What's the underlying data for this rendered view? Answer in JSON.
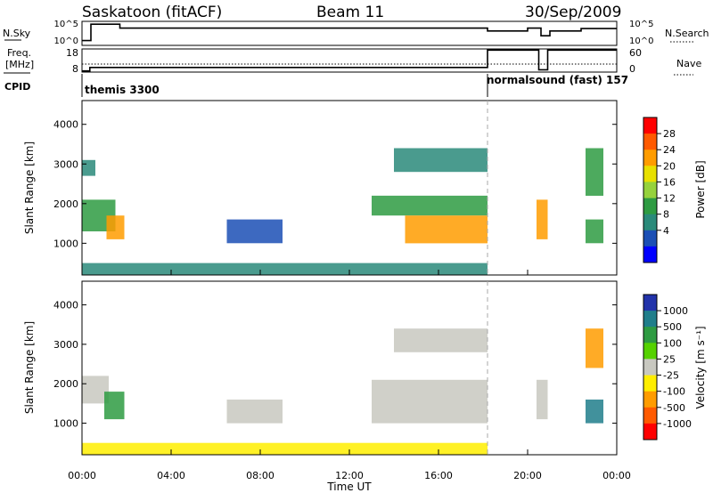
{
  "header": {
    "station": "Saskatoon  (fitACF)",
    "beam": "Beam 11",
    "date": "30/Sep/2009"
  },
  "status_panels": {
    "nsky_label": "N.Sky",
    "nsky_ticks": [
      "10^5",
      "10^0"
    ],
    "nsearch_label": "N.Search",
    "nsearch_ticks": [
      "10^5",
      "10^0"
    ],
    "freq_label_line1": "Freq.",
    "freq_label_line2": "[MHz]",
    "freq_ticks": [
      "18",
      "8"
    ],
    "nave_label": "Nave",
    "nave_ticks": [
      "60",
      "0"
    ],
    "cpid_label": "CPID",
    "cpid_1": "themis 3300",
    "cpid_2": "normalsound (fast) 157",
    "cpid_switch_hour": 18.2,
    "nsky_level": [
      {
        "x0": 0.0,
        "x1": 0.4,
        "v": 0.2
      },
      {
        "x0": 0.4,
        "x1": 1.7,
        "v": 0.88
      },
      {
        "x0": 1.7,
        "x1": 18.2,
        "v": 0.72
      },
      {
        "x0": 18.2,
        "x1": 20.0,
        "v": 0.6
      },
      {
        "x0": 20.0,
        "x1": 20.6,
        "v": 0.72
      },
      {
        "x0": 20.6,
        "x1": 21.0,
        "v": 0.4
      },
      {
        "x0": 21.0,
        "x1": 22.4,
        "v": 0.6
      },
      {
        "x0": 22.4,
        "x1": 24.0,
        "v": 0.7
      }
    ],
    "freq_level": [
      {
        "x0": 0.0,
        "x1": 0.35,
        "v": 0.05
      },
      {
        "x0": 0.35,
        "x1": 18.2,
        "v": 0.2
      },
      {
        "x0": 18.2,
        "x1": 20.5,
        "v": 0.95
      },
      {
        "x0": 20.5,
        "x1": 20.9,
        "v": 0.1
      },
      {
        "x0": 20.9,
        "x1": 22.4,
        "v": 0.95
      },
      {
        "x0": 22.4,
        "x1": 24.0,
        "v": 0.95
      }
    ]
  },
  "power_colorbar": {
    "title": "Power [dB]",
    "ticks": [
      "28",
      "24",
      "20",
      "16",
      "12",
      "8",
      "4"
    ],
    "colors": [
      "#ff0000",
      "#ff5a00",
      "#ff9c00",
      "#e8e000",
      "#96d23c",
      "#2e9b42",
      "#2a8a7a",
      "#1b4fb5",
      "#0000ff"
    ]
  },
  "velocity_colorbar": {
    "title": "Velocity [m s⁻¹]",
    "ticks": [
      "1000",
      "500",
      "100",
      "25",
      "-25",
      "-100",
      "-500",
      "-1000"
    ],
    "colors": [
      "#2233aa",
      "#207e8b",
      "#2e9b42",
      "#55d200",
      "#c8c8c0",
      "#ffee00",
      "#ff9c00",
      "#ff5a00",
      "#ff0000"
    ]
  },
  "chart_data": [
    {
      "type": "heatmap",
      "title": "Power",
      "xlabel": "",
      "ylabel": "Slant Range [km]",
      "xlim": [
        0,
        24
      ],
      "ylim": [
        200,
        4600
      ],
      "yticks": [
        "4000",
        "3000",
        "2000",
        "1000"
      ],
      "ytick_values": [
        4000,
        3000,
        2000,
        1000
      ],
      "cbar_label": "Power [dB]",
      "regions": [
        {
          "x0": 0.0,
          "x1": 1.5,
          "y0": 1300,
          "y1": 2100,
          "v": 12
        },
        {
          "x0": 1.1,
          "x1": 1.9,
          "y0": 1100,
          "y1": 1700,
          "v": 26
        },
        {
          "x0": 0.0,
          "x1": 0.6,
          "y0": 2700,
          "y1": 3100,
          "v": 10
        },
        {
          "x0": 6.5,
          "x1": 9.0,
          "y0": 1000,
          "y1": 1600,
          "v": 6
        },
        {
          "x0": 13.0,
          "x1": 18.2,
          "y0": 1700,
          "y1": 2200,
          "v": 12
        },
        {
          "x0": 14.5,
          "x1": 18.2,
          "y0": 1000,
          "y1": 1700,
          "v": 26
        },
        {
          "x0": 14.0,
          "x1": 18.2,
          "y0": 2800,
          "y1": 3400,
          "v": 10
        },
        {
          "x0": 20.4,
          "x1": 20.9,
          "y0": 1100,
          "y1": 2100,
          "v": 26
        },
        {
          "x0": 22.6,
          "x1": 23.4,
          "y0": 1000,
          "y1": 1600,
          "v": 12
        },
        {
          "x0": 22.6,
          "x1": 23.4,
          "y0": 2200,
          "y1": 3400,
          "v": 12
        },
        {
          "x0": 0.0,
          "x1": 18.2,
          "y0": 200,
          "y1": 500,
          "v": 8
        }
      ]
    },
    {
      "type": "heatmap",
      "title": "Velocity",
      "xlabel": "Time UT",
      "ylabel": "Slant Range [km]",
      "xlim": [
        0,
        24
      ],
      "ylim": [
        200,
        4600
      ],
      "xticks": [
        "00:00",
        "04:00",
        "08:00",
        "12:00",
        "16:00",
        "20:00",
        "00:00"
      ],
      "xtick_values": [
        0,
        4,
        8,
        12,
        16,
        20,
        24
      ],
      "yticks": [
        "4000",
        "3000",
        "2000",
        "1000"
      ],
      "ytick_values": [
        4000,
        3000,
        2000,
        1000
      ],
      "cbar_label": "Velocity [m s⁻¹]",
      "regions": [
        {
          "x0": 0.0,
          "x1": 1.2,
          "y0": 1500,
          "y1": 2200,
          "v": 0
        },
        {
          "x0": 1.0,
          "x1": 1.9,
          "y0": 1100,
          "y1": 1800,
          "v": 100
        },
        {
          "x0": 6.5,
          "x1": 9.0,
          "y0": 1000,
          "y1": 1600,
          "v": 0
        },
        {
          "x0": 13.0,
          "x1": 18.2,
          "y0": 1000,
          "y1": 2100,
          "v": 0
        },
        {
          "x0": 14.0,
          "x1": 18.2,
          "y0": 2800,
          "y1": 3400,
          "v": 0
        },
        {
          "x0": 20.4,
          "x1": 20.9,
          "y0": 1100,
          "y1": 2100,
          "v": 0
        },
        {
          "x0": 22.6,
          "x1": 23.4,
          "y0": 1000,
          "y1": 1600,
          "v": 500
        },
        {
          "x0": 22.6,
          "x1": 23.4,
          "y0": 2400,
          "y1": 3400,
          "v": -300
        },
        {
          "x0": 0.0,
          "x1": 18.2,
          "y0": 200,
          "y1": 500,
          "v": -100
        }
      ]
    }
  ]
}
